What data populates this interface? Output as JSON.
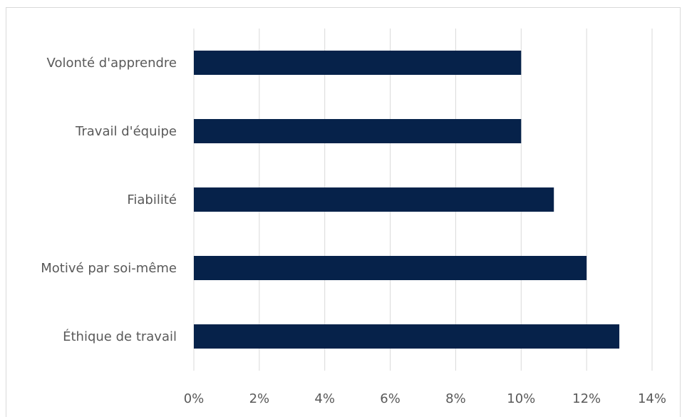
{
  "chart_data": {
    "type": "bar",
    "orientation": "horizontal",
    "categories": [
      "Volonté d'apprendre",
      "Travail d'équipe",
      "Fiabilité",
      "Motivé par soi-même",
      "Éthique de travail"
    ],
    "values": [
      10,
      10,
      11,
      12,
      13
    ],
    "title": "",
    "xlabel": "",
    "ylabel": "",
    "xlim": [
      0,
      14
    ],
    "ticks": [
      0,
      2,
      4,
      6,
      8,
      10,
      12,
      14
    ],
    "tick_format": "percent",
    "grid": "vertical",
    "legend": "none",
    "bar_color": "#06224a",
    "grid_color": "#d9d9d9",
    "text_color": "#595959"
  }
}
